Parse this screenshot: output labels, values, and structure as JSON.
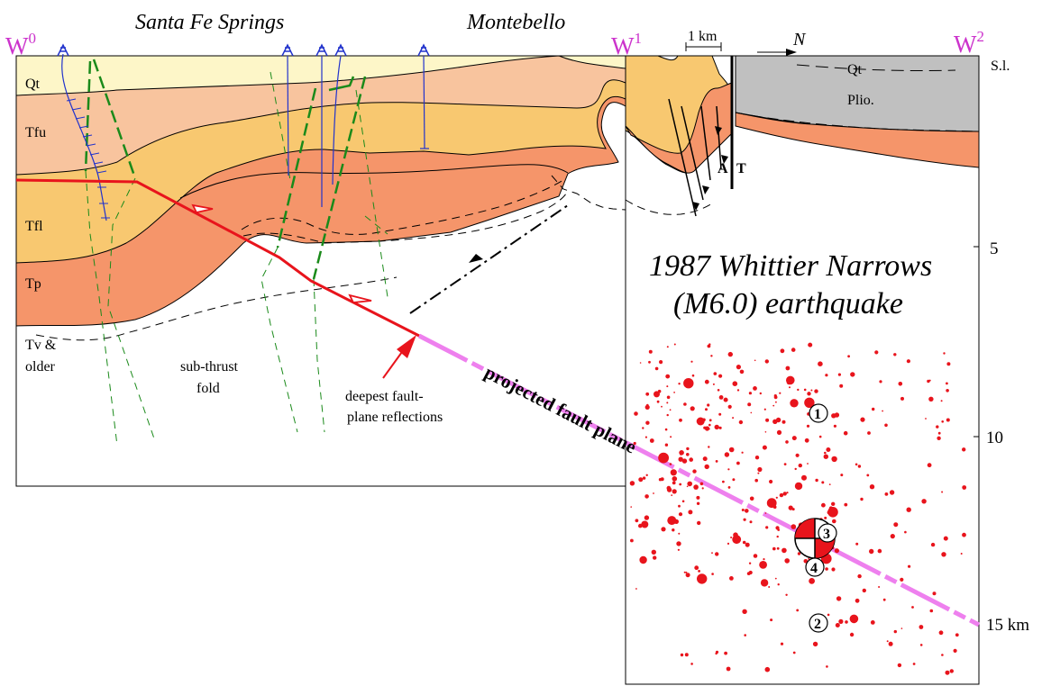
{
  "places": {
    "west": "Santa Fe Springs",
    "east": "Montebello"
  },
  "sections": {
    "w0": "W",
    "w0_sup": "0",
    "w1": "W",
    "w1_sup": "1",
    "w2": "W",
    "w2_sup": "2"
  },
  "units_left": [
    "Qt",
    "Tfu",
    "Tfl",
    "Tp",
    "Tv &",
    "older"
  ],
  "units_right": {
    "qt": "Qt",
    "plio": "Plio."
  },
  "scale": {
    "bar": "1 km",
    "north": "N"
  },
  "fault_letters": {
    "a": "A",
    "t": "T"
  },
  "depth_axis": {
    "sl": "S.l.",
    "d5": "5",
    "d10": "10",
    "d15": "15 km"
  },
  "annotations": {
    "subthrust_1": "sub-thrust",
    "subthrust_2": "fold",
    "deepest_1": "deepest fault-",
    "deepest_2": "plane reflections",
    "projected": "projected fault plane"
  },
  "quake_title": {
    "line1": "1987 Whittier Narrows",
    "line2": "(M6.0) earthquake"
  },
  "event_numbers": {
    "e1": "1",
    "e2": "2",
    "e3": "3",
    "e4": "4"
  },
  "colors": {
    "qt": "#fdf6c8",
    "tfu": "#f8c49e",
    "tfl": "#f8c870",
    "tp": "#f5956a",
    "plio": "#c0c0c0",
    "fault": "#e8141c",
    "projected": "#ee80ee",
    "green": "#1a8a1a",
    "well": "#2233cc",
    "w": "#cc33cc"
  }
}
